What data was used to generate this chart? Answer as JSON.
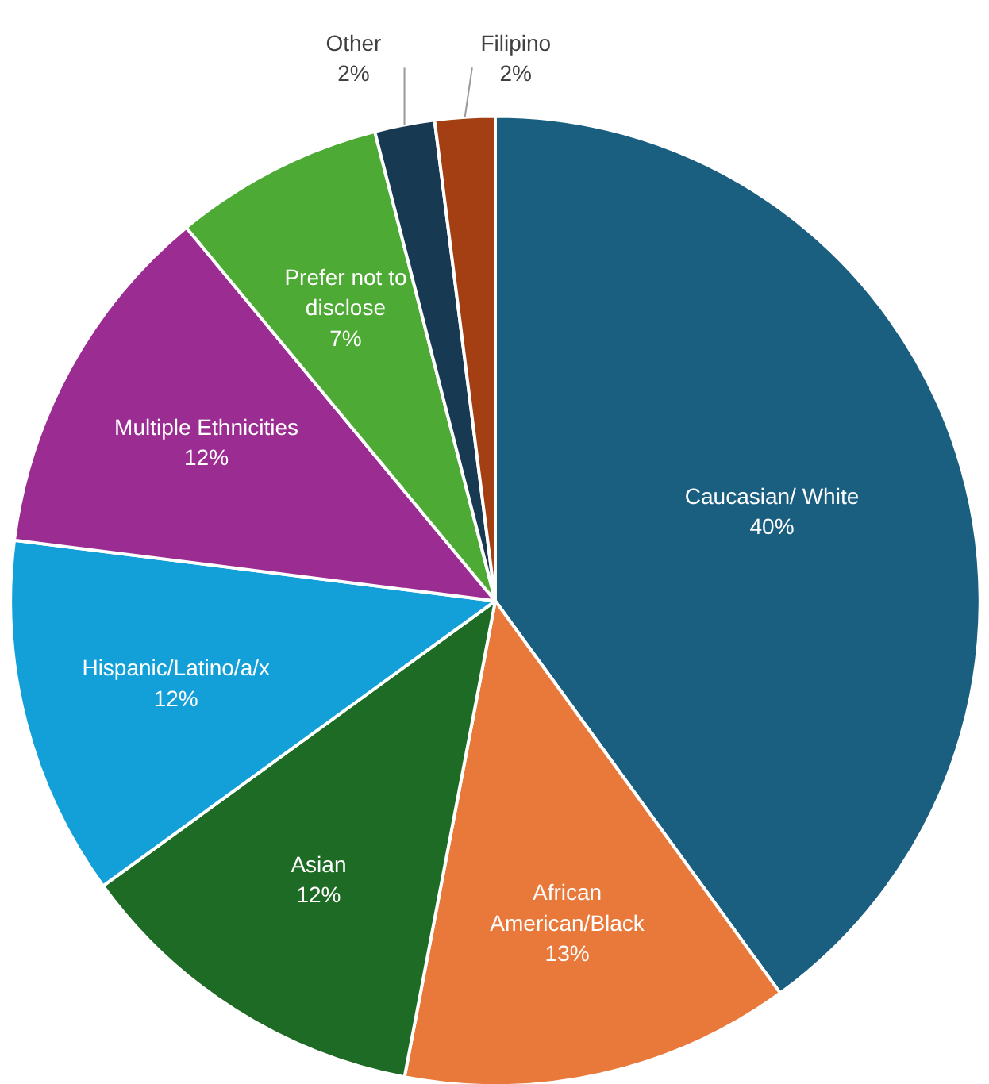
{
  "chart_data": {
    "type": "pie",
    "categories": [
      "Caucasian/ White",
      "African American/Black",
      "Asian",
      "Hispanic/Latino/a/x",
      "Multiple Ethnicities",
      "Prefer not to disclose",
      "Other",
      "Filipino"
    ],
    "values": [
      40,
      13,
      12,
      12,
      12,
      7,
      2,
      2
    ],
    "colors": [
      "#1a5e80",
      "#e8793a",
      "#1e6b25",
      "#13a0d8",
      "#9b2c91",
      "#4daa35",
      "#173a52",
      "#a33f12"
    ],
    "value_labels": [
      "40%",
      "13%",
      "12%",
      "12%",
      "12%",
      "7%",
      "2%",
      "2%"
    ]
  }
}
